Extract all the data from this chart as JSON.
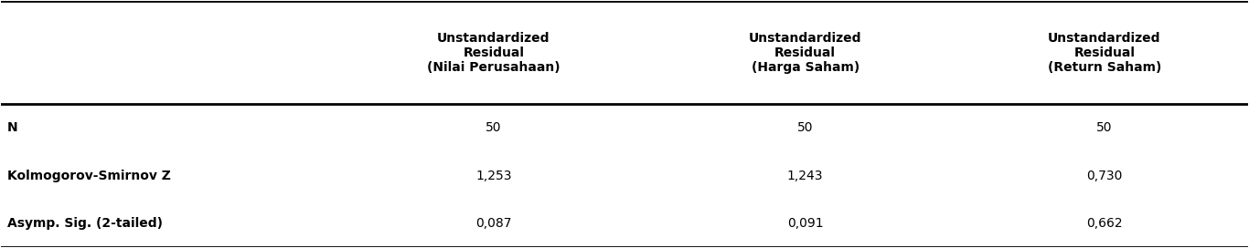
{
  "col_headers": [
    "Unstandardized\nResidual\n(Nilai Perusahaan)",
    "Unstandardized\nResidual\n(Harga Saham)",
    "Unstandardized\nResidual\n(Return Saham)"
  ],
  "row_labels": [
    "N",
    "Kolmogorov-Smirnov Z",
    "Asymp. Sig. (2-tailed)"
  ],
  "data": [
    [
      "50",
      "50",
      "50"
    ],
    [
      "1,253",
      "1,243",
      "0,730"
    ],
    [
      "0,087",
      "0,091",
      "0,662"
    ]
  ],
  "background_color": "#ffffff",
  "header_line_color": "#000000",
  "text_color": "#000000",
  "font_size": 10,
  "header_font_size": 10
}
